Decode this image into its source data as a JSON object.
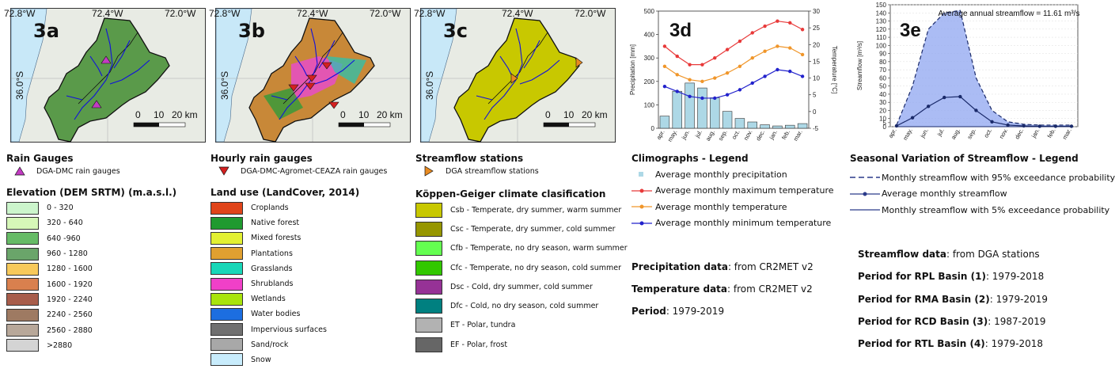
{
  "maps": {
    "a": {
      "label": "3a",
      "lon_left": "72.8°W",
      "lon_mid": "72.4°W",
      "lon_right": "72.0°W",
      "lat": "36.0°S",
      "scale_zero": "0",
      "scale_mid": "10",
      "scale_end": "20 km"
    },
    "b": {
      "label": "3b",
      "lon_left": "72.8°W",
      "lon_mid": "72.4°W",
      "lon_right": "72.0°W",
      "lat": "36.0°S",
      "scale_zero": "0",
      "scale_mid": "10",
      "scale_end": "20 km"
    },
    "c": {
      "label": "3c",
      "lon_left": "72.8°W",
      "lon_mid": "72.4°W",
      "lon_right": "72.0°W",
      "lat": "36.0°S",
      "scale_zero": "0",
      "scale_mid": "10",
      "scale_end": "20 km"
    }
  },
  "rain_gauges": {
    "title": "Rain Gauges",
    "item": "DGA-DMC rain gauges",
    "color": "#c23bc2"
  },
  "elevation": {
    "title": "Elevation (DEM SRTM) (m.a.s.l.)",
    "items": [
      {
        "label": "0 - 320",
        "color": "#ccf5cc"
      },
      {
        "label": "320 - 640",
        "color": "#d6f7b8"
      },
      {
        "label": "640 -960",
        "color": "#66bb66"
      },
      {
        "label": "960 - 1280",
        "color": "#6aa56a"
      },
      {
        "label": "1280 - 1600",
        "color": "#f7c95a"
      },
      {
        "label": "1600 - 1920",
        "color": "#d9804e"
      },
      {
        "label": "1920 - 2240",
        "color": "#a85d4b"
      },
      {
        "label": "2240 - 2560",
        "color": "#9e7a62"
      },
      {
        "label": "2560 - 2880",
        "color": "#b8a89a"
      },
      {
        "label": ">2880",
        "color": "#d4d4d4"
      }
    ]
  },
  "hourly_gauges": {
    "title": "Hourly rain gauges",
    "item": "DGA-DMC-Agromet-CEAZA rain gauges",
    "color": "#d42020"
  },
  "land_use": {
    "title": "Land use (LandCover, 2014)",
    "items": [
      {
        "label": "Croplands",
        "color": "#e0441a"
      },
      {
        "label": "Native forest",
        "color": "#1f9a2f"
      },
      {
        "label": "Mixed forests",
        "color": "#e2f032"
      },
      {
        "label": "Plantations",
        "color": "#e0a030"
      },
      {
        "label": "Grasslands",
        "color": "#18d7b8"
      },
      {
        "label": "Shrublands",
        "color": "#f040c8"
      },
      {
        "label": "Wetlands",
        "color": "#a8e40c"
      },
      {
        "label": "Water bodies",
        "color": "#1c6ee0"
      },
      {
        "label": "Impervious surfaces",
        "color": "#707070"
      },
      {
        "label": "Sand/rock",
        "color": "#a8a8a8"
      },
      {
        "label": "Snow",
        "color": "#c8ecfc"
      }
    ]
  },
  "streamflow_stations": {
    "title": "Streamflow stations",
    "item": "DGA streamflow stations",
    "color": "#e88a20"
  },
  "koppen": {
    "title": "Köppen-Geiger climate clasification",
    "items": [
      {
        "label": "Csb - Temperate, dry summer, warm summer",
        "color": "#c8c800"
      },
      {
        "label": "Csc - Temperate, dry summer, cold summer",
        "color": "#969600"
      },
      {
        "label": "Cfb - Temperate, no dry season, warm summer",
        "color": "#64ff50"
      },
      {
        "label": "Cfc - Temperate, no dry season, cold summer",
        "color": "#32c800"
      },
      {
        "label": "Dsc - Cold, dry summer, cold summer",
        "color": "#963296"
      },
      {
        "label": "Dfc - Cold, no dry season, cold summer",
        "color": "#008080"
      },
      {
        "label": "ET - Polar, tundra",
        "color": "#b2b2b2"
      },
      {
        "label": "EF - Polar, frost",
        "color": "#666666"
      }
    ]
  },
  "climograph_legend": {
    "title": "Climographs - Legend",
    "items": [
      {
        "label": "Average monthly precipitation",
        "kind": "bar",
        "color": "#add8e6"
      },
      {
        "label": "Average monthly maximum temperature",
        "kind": "line",
        "color": "#e83a3a"
      },
      {
        "label": "Average monthly temperature",
        "kind": "line",
        "color": "#f0962a"
      },
      {
        "label": "Average monthly minimum temperature",
        "kind": "line",
        "color": "#2222cc"
      }
    ]
  },
  "data_info": {
    "precip_label": "Precipitation data",
    "precip_value": ": from CR2MET v2",
    "temp_label": "Temperature data",
    "temp_value": ": from CR2MET v2",
    "period_label": "Period",
    "period_value": ": 1979-2019"
  },
  "streamflow_legend": {
    "title": "Seasonal Variation of Streamflow - Legend",
    "items": [
      {
        "label": "Monthly streamflow with 95% exceedance probability",
        "kind": "dashed"
      },
      {
        "label": "Average monthly streamflow",
        "kind": "marker"
      },
      {
        "label": "Monthly streamflow with 5% exceedance probability",
        "kind": "solid"
      }
    ]
  },
  "streamflow_info": {
    "data_label": "Streamflow data",
    "data_value": ": from DGA stations",
    "p1_label": "Period for RPL Basin (1)",
    "p1_value": ": 1979-2018",
    "p2_label": "Period for RMA Basin (2)",
    "p2_value": ": 1979-2019",
    "p3_label": "Period for RCD Basin (3)",
    "p3_value": ": 1987-2019",
    "p4_label": "Period for RTL Basin (4)",
    "p4_value": ": 1979-2018"
  },
  "chart_data": [
    {
      "type": "bar",
      "label": "3d",
      "categories": [
        "apr.",
        "may.",
        "jun.",
        "jul.",
        "aug.",
        "sep.",
        "oct.",
        "nov.",
        "dec.",
        "jan.",
        "feb.",
        "mar."
      ],
      "precip": [
        52,
        158,
        193,
        172,
        130,
        72,
        42,
        27,
        15,
        10,
        13,
        20
      ],
      "tmax": [
        19.5,
        16.5,
        14,
        14,
        16,
        18.5,
        21,
        23.5,
        25.5,
        27,
        26.5,
        24.5
      ],
      "tmean": [
        13.5,
        11,
        9.5,
        9,
        10,
        11.5,
        13.5,
        16,
        18,
        19.5,
        19,
        17
      ],
      "tmin": [
        7.5,
        6,
        4.5,
        4,
        4,
        5,
        6.5,
        8.5,
        10.5,
        12.5,
        12,
        10.5
      ],
      "ylabel": "Precipitation [mm]",
      "y2label": "Temperature [°C]",
      "ylim": [
        0,
        500
      ],
      "y2lim": [
        -5,
        30
      ],
      "yticks": [
        "0",
        "100",
        "200",
        "300",
        "400",
        "500"
      ],
      "y2ticks": [
        "-5",
        "0",
        "5",
        "10",
        "15",
        "20",
        "25",
        "30"
      ]
    },
    {
      "type": "area",
      "label": "3e",
      "title": "Average annual streamflow = 11.61 m³/s",
      "categories": [
        "apr.",
        "may.",
        "jun.",
        "jul.",
        "aug.",
        "sep.",
        "oct.",
        "nov.",
        "dec.",
        "jan.",
        "feb.",
        "mar."
      ],
      "q95": [
        2,
        50,
        120,
        140,
        143,
        60,
        20,
        6,
        3,
        2,
        2,
        2
      ],
      "qmean": [
        1,
        11,
        25,
        36,
        37,
        20,
        6,
        2,
        1,
        0.5,
        0.5,
        0.5
      ],
      "q5": [
        0,
        0,
        0,
        0,
        0,
        0,
        0,
        0,
        0,
        0,
        0,
        0
      ],
      "ylabel": "Streamflow [m³/s]",
      "ylim": [
        0,
        150
      ],
      "yticks": [
        "0",
        "5",
        "10",
        "20",
        "30",
        "40",
        "50",
        "60",
        "70",
        "80",
        "90",
        "100",
        "110",
        "120",
        "130",
        "140",
        "150"
      ]
    }
  ]
}
